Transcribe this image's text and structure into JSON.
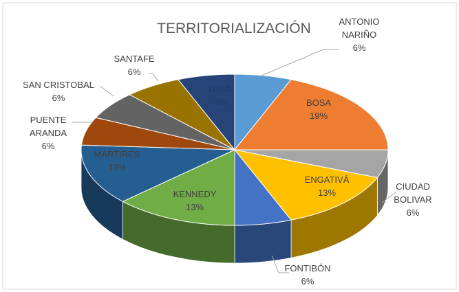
{
  "chart_data": {
    "type": "pie",
    "title": "TERRITORIALIZACIÓN",
    "categories": [
      "ANTONIO NARIÑO",
      "BOSA",
      "CIUDAD BOLIVAR",
      "ENGATIVÁ",
      "FONTIBÓN",
      "KENNEDY",
      "MARTIRES",
      "PUENTE ARANDA",
      "SAN CRISTOBAL",
      "SANTAFE",
      "USME"
    ],
    "values": [
      6,
      19,
      6,
      13,
      6,
      13,
      13,
      6,
      6,
      6,
      6
    ],
    "value_labels": [
      "6%",
      "19%",
      "6%",
      "13%",
      "6%",
      "13%",
      "13%",
      "6%",
      "6%",
      "6%",
      "6%"
    ],
    "colors": [
      "#5b9bd5",
      "#ed7d31",
      "#a5a5a5",
      "#ffc000",
      "#4472c4",
      "#70ad47",
      "#255e91",
      "#9e480e",
      "#636363",
      "#997300",
      "#264478"
    ]
  }
}
